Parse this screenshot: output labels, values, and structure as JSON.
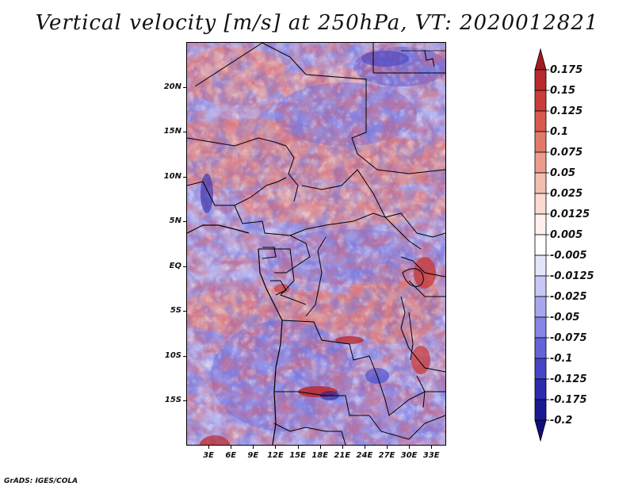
{
  "title": "Vertical velocity [m/s] at 250hPa, VT: 2020012821",
  "footer": "GrADS: IGES/COLA",
  "map": {
    "lat_range": [
      -20,
      25
    ],
    "lon_range": [
      0,
      35
    ],
    "lat_labels": [
      "20N",
      "15N",
      "10N",
      "5N",
      "EQ",
      "5S",
      "10S",
      "15S"
    ],
    "lat_values": [
      20,
      15,
      10,
      5,
      0,
      -5,
      -10,
      -15
    ],
    "lon_labels": [
      "3E",
      "6E",
      "9E",
      "12E",
      "15E",
      "18E",
      "21E",
      "24E",
      "27E",
      "30E",
      "33E"
    ],
    "lon_values": [
      3,
      6,
      9,
      12,
      15,
      18,
      21,
      24,
      27,
      30,
      33
    ]
  },
  "colorbar": {
    "labels": [
      "0.175",
      "0.15",
      "0.125",
      "0.1",
      "0.075",
      "0.05",
      "0.025",
      "0.0125",
      "0.005",
      "-0.005",
      "-0.0125",
      "-0.025",
      "-0.05",
      "-0.075",
      "-0.1",
      "-0.125",
      "-0.175",
      "-0.2"
    ],
    "colors": [
      "#a01c23",
      "#b82a2e",
      "#c93c3a",
      "#d85a4f",
      "#e27a6a",
      "#ec9c8c",
      "#f4bdb1",
      "#fad9d1",
      "#fff0ec",
      "#ffffff",
      "#e4e4fb",
      "#c8c8f6",
      "#a7a7ef",
      "#8585e6",
      "#6464d9",
      "#4545c6",
      "#2b2bae",
      "#191a93",
      "#100e78"
    ]
  }
}
